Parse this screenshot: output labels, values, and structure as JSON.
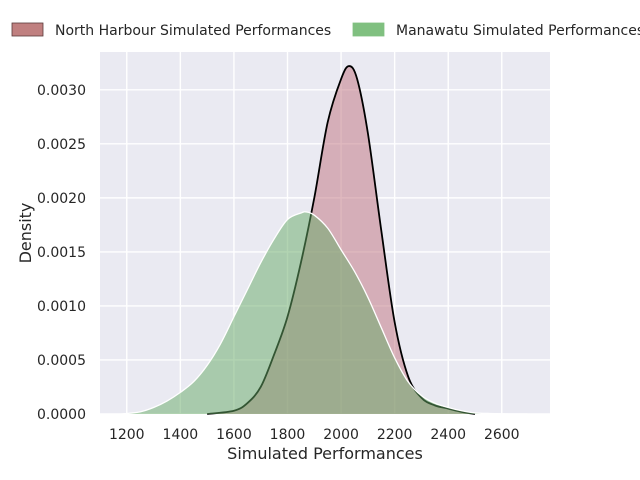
{
  "chart_data": {
    "type": "area",
    "xlabel": "Simulated Performances",
    "ylabel": "Density",
    "xlim": [
      1100,
      2780
    ],
    "ylim": [
      0,
      0.00335
    ],
    "x_ticks": [
      1200,
      1400,
      1600,
      1800,
      2000,
      2200,
      2400,
      2600
    ],
    "x_tick_labels": [
      "1200",
      "1400",
      "1600",
      "1800",
      "2000",
      "2200",
      "2400",
      "2600"
    ],
    "y_ticks": [
      0,
      0.0005,
      0.001,
      0.0015,
      0.002,
      0.0025,
      0.003
    ],
    "y_tick_labels": [
      "0.0000",
      "0.0005",
      "0.0010",
      "0.0015",
      "0.0020",
      "0.0025",
      "0.0030"
    ],
    "grid": true,
    "legend_placement": "top",
    "series": [
      {
        "name": "North Harbour Simulated Performances",
        "fill": "#c0727e",
        "legend_fill": "#c08080",
        "stroke": "#000000",
        "x": [
          1500,
          1600,
          1650,
          1700,
          1750,
          1800,
          1850,
          1900,
          1950,
          2000,
          2030,
          2060,
          2100,
          2150,
          2200,
          2250,
          2300,
          2350,
          2400,
          2450,
          2500
        ],
        "y": [
          0.0,
          3e-05,
          0.0001,
          0.00025,
          0.00055,
          0.0009,
          0.0014,
          0.002,
          0.0027,
          0.0031,
          0.00322,
          0.0031,
          0.0026,
          0.0017,
          0.00085,
          0.00035,
          0.00015,
          8e-05,
          5e-05,
          2e-05,
          0.0
        ]
      },
      {
        "name": "Manawatu Simulated Performances",
        "fill": "#66aa66",
        "legend_fill": "#80c080",
        "stroke": "#ffffff",
        "x": [
          1180,
          1250,
          1300,
          1350,
          1400,
          1450,
          1500,
          1550,
          1600,
          1650,
          1700,
          1750,
          1800,
          1850,
          1870,
          1900,
          1950,
          2000,
          2050,
          2100,
          2150,
          2200,
          2250,
          2300,
          2350,
          2400,
          2450,
          2500,
          2550,
          2600,
          2700
        ],
        "y": [
          0.0,
          2e-05,
          6e-05,
          0.00012,
          0.0002,
          0.0003,
          0.00045,
          0.00065,
          0.0009,
          0.00115,
          0.0014,
          0.00162,
          0.0018,
          0.00186,
          0.00187,
          0.00184,
          0.00172,
          0.00152,
          0.00132,
          0.00108,
          0.0008,
          0.00052,
          0.0003,
          0.00017,
          0.0001,
          6e-05,
          3e-05,
          1e-05,
          5e-06,
          2e-06,
          0.0
        ]
      }
    ]
  }
}
